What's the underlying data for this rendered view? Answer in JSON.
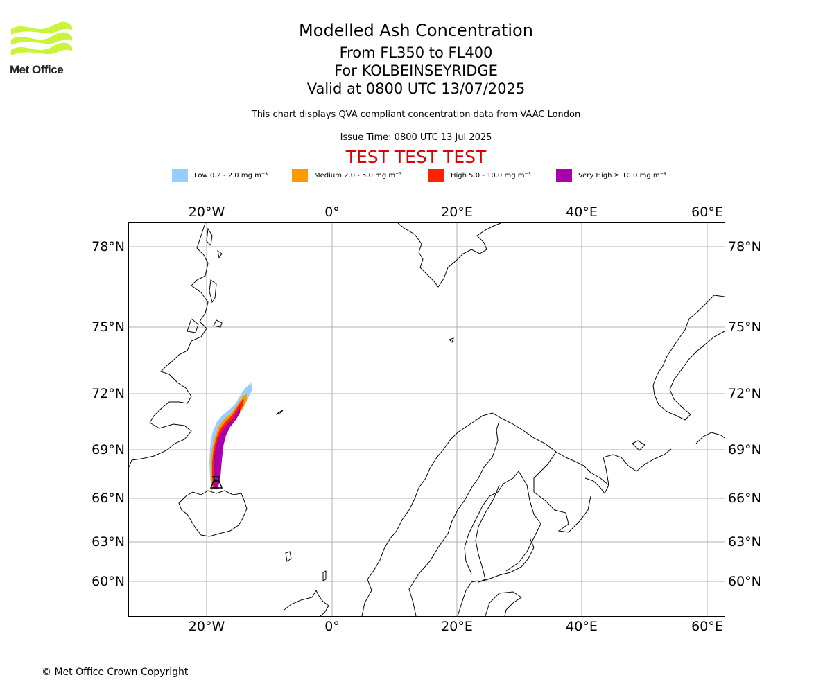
{
  "header": {
    "logo_text": "Met Office",
    "title": "Modelled Ash Concentration",
    "level_range": "From FL350 to FL400",
    "volcano": "For KOLBEINSEYRIDGE",
    "valid_time": "Valid at 0800 UTC 13/07/2025",
    "subtitle": "This chart displays QVA compliant concentration data from VAAC London",
    "issue_time": "Issue Time: 0800 UTC 13 Jul 2025",
    "test_banner": "TEST TEST TEST"
  },
  "legend": [
    {
      "label": "Low 0.2 - 2.0 mg m⁻³",
      "color": "#99ccff"
    },
    {
      "label": "Medium 2.0 - 5.0 mg m⁻³",
      "color": "#ff9900"
    },
    {
      "label": "High 5.0 - 10.0 mg m⁻³",
      "color": "#ff2200"
    },
    {
      "label": "Very High  ≥  10.0 mg m⁻³",
      "color": "#aa00aa"
    }
  ],
  "map": {
    "lon_ticks": [
      "20°W",
      "0°",
      "20°E",
      "40°E",
      "60°E"
    ],
    "lat_ticks": [
      "78°N",
      "75°N",
      "72°N",
      "69°N",
      "66°N",
      "63°N",
      "60°N"
    ],
    "volcano_marker": "volcano-symbol"
  },
  "footer": {
    "copyright": "© Met Office Crown Copyright"
  }
}
